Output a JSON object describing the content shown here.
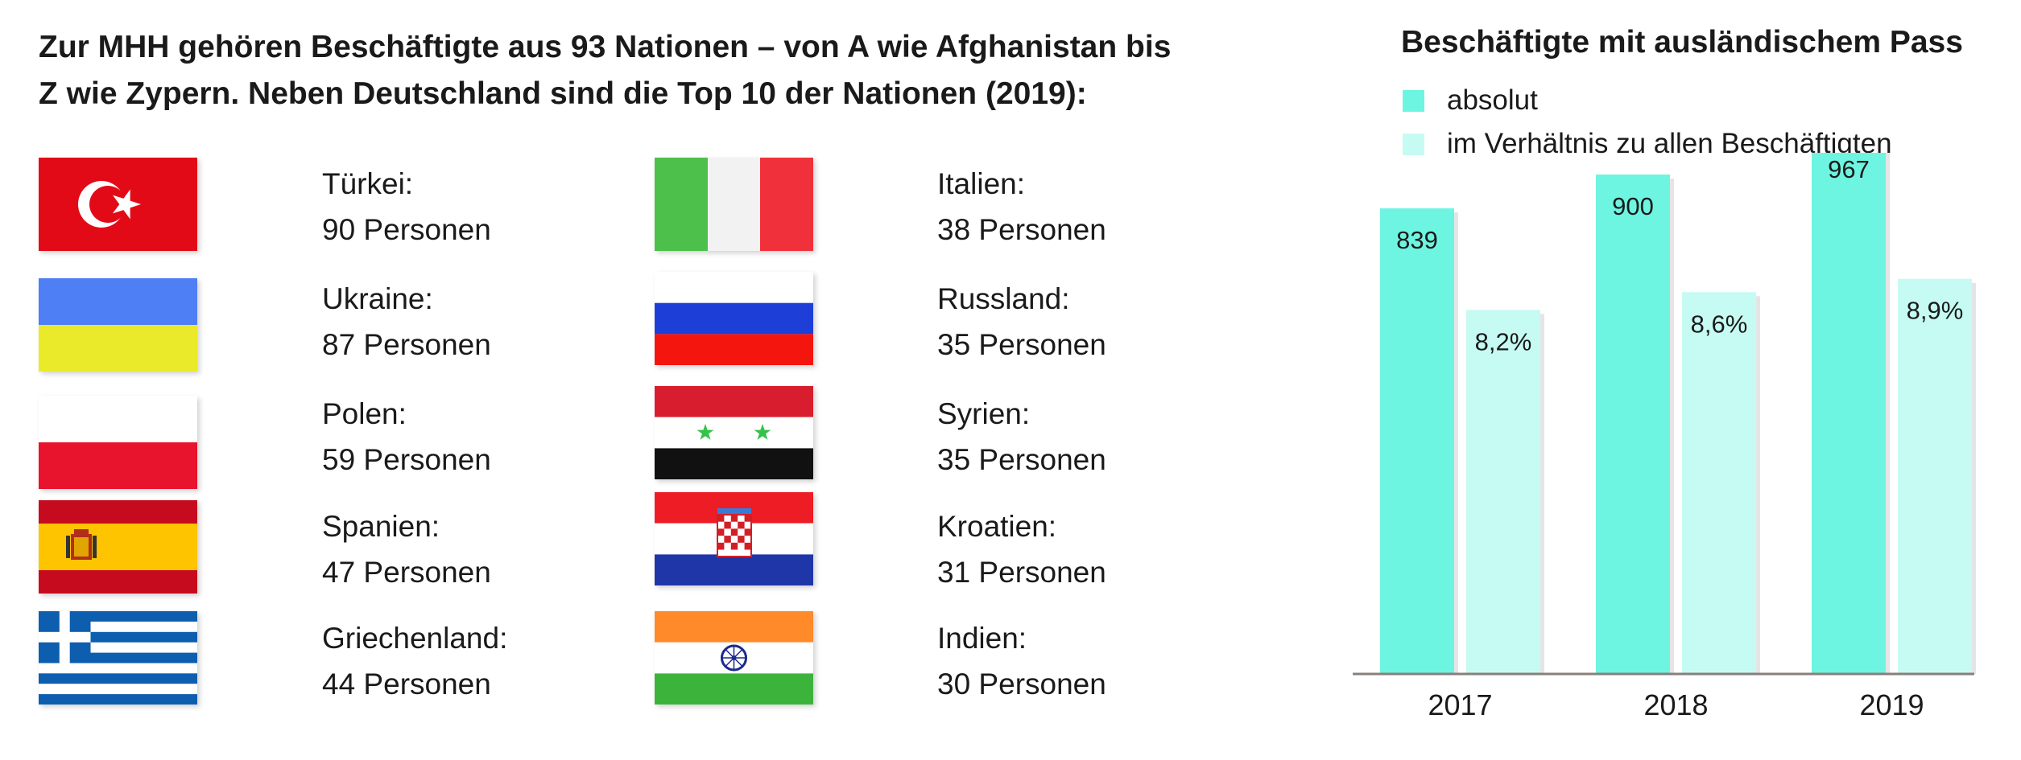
{
  "headline": {
    "line1": "Zur MHH gehören Beschäftigte aus 93 Nationen – von A wie Afghanistan bis",
    "line2": "Z wie Zypern. Neben Deutschland sind die Top 10 der Nationen (2019):"
  },
  "countries": [
    {
      "name": "Türkei:",
      "count": "90 Personen",
      "flag": "turkey-flag-icon"
    },
    {
      "name": "Ukraine:",
      "count": "87 Personen",
      "flag": "ukraine-flag-icon"
    },
    {
      "name": "Polen:",
      "count": "59 Personen",
      "flag": "poland-flag-icon"
    },
    {
      "name": "Spanien:",
      "count": "47 Personen",
      "flag": "spain-flag-icon"
    },
    {
      "name": "Griechenland:",
      "count": "44 Personen",
      "flag": "greece-flag-icon"
    },
    {
      "name": "Italien:",
      "count": "38 Personen",
      "flag": "italy-flag-icon"
    },
    {
      "name": "Russland:",
      "count": "35 Personen",
      "flag": "russia-flag-icon"
    },
    {
      "name": "Syrien:",
      "count": "35 Personen",
      "flag": "syria-flag-icon"
    },
    {
      "name": "Kroatien:",
      "count": "31 Personen",
      "flag": "croatia-flag-icon"
    },
    {
      "name": "Indien:",
      "count": "30 Personen",
      "flag": "india-flag-icon"
    }
  ],
  "colors": {
    "absolut": "#6ef5e2",
    "ratio": "#c6fbf3",
    "baseline": "#8a7f7a"
  },
  "chart_data": {
    "type": "bar",
    "title": "Beschäftigte mit ausländischem Pass",
    "legend_position": "top-left",
    "grid": false,
    "categories": [
      "2017",
      "2018",
      "2019"
    ],
    "series": [
      {
        "name": "absolut",
        "values": [
          839,
          900,
          967
        ],
        "labels": [
          "839",
          "900",
          "967"
        ]
      },
      {
        "name": "im Verhältnis zu allen Beschäftigten",
        "values": [
          8.2,
          8.6,
          8.9
        ],
        "labels": [
          "8,2%",
          "8,6%",
          "8,9%"
        ]
      }
    ],
    "ylim_absolut": [
      0,
      1000
    ],
    "ylim_ratio": [
      0,
      12.5
    ]
  }
}
